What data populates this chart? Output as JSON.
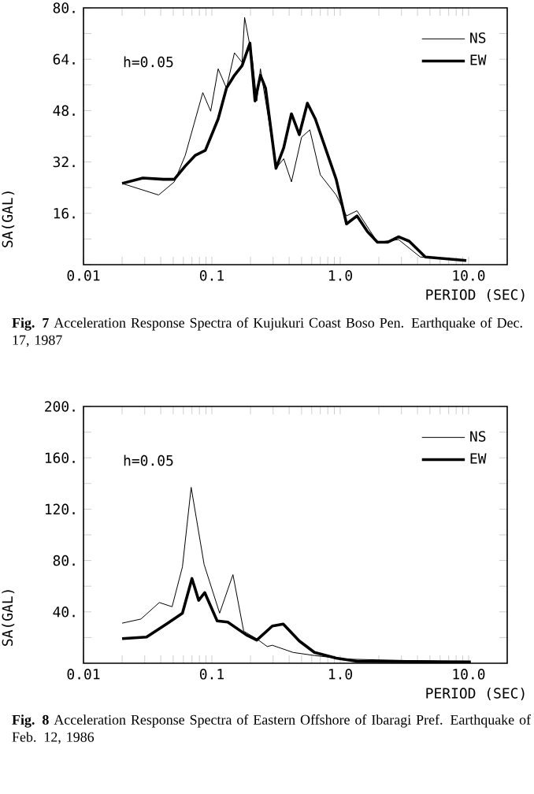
{
  "chart_data": [
    {
      "type": "line",
      "title": "**Fig. 7** Acceleration Response Spectra of Kujukuri Coast Boso Pen. Earthquake of Dec. 17, 1987",
      "xlabel": "PERIOD (SEC)",
      "ylabel": "SA(GAL)",
      "annotations": [
        "h=0.05"
      ],
      "log": "x",
      "legend": "top right",
      "xlim": [
        0.01,
        20
      ],
      "ylim": [
        0,
        80
      ],
      "xticks": [
        {
          "value": 0.01,
          "label": "0.01"
        },
        {
          "value": 0.02,
          "label": null
        },
        {
          "value": 0.03,
          "label": null
        },
        {
          "value": 0.04,
          "label": null
        },
        {
          "value": 0.05,
          "label": null
        },
        {
          "value": 0.06,
          "label": null
        },
        {
          "value": 0.07,
          "label": null
        },
        {
          "value": 0.08,
          "label": null
        },
        {
          "value": 0.09,
          "label": null
        },
        {
          "value": 0.1,
          "label": "0.1"
        },
        {
          "value": 0.2,
          "label": null
        },
        {
          "value": 0.3,
          "label": null
        },
        {
          "value": 0.4,
          "label": null
        },
        {
          "value": 0.5,
          "label": null
        },
        {
          "value": 0.6,
          "label": null
        },
        {
          "value": 0.7,
          "label": null
        },
        {
          "value": 0.8,
          "label": null
        },
        {
          "value": 0.9,
          "label": null
        },
        {
          "value": 1,
          "label": "1.0"
        },
        {
          "value": 2,
          "label": null
        },
        {
          "value": 3,
          "label": null
        },
        {
          "value": 4,
          "label": null
        },
        {
          "value": 5,
          "label": null
        },
        {
          "value": 6,
          "label": null
        },
        {
          "value": 7,
          "label": null
        },
        {
          "value": 8,
          "label": null
        },
        {
          "value": 9,
          "label": null
        },
        {
          "value": 10,
          "label": "10.0"
        }
      ],
      "yticks": [
        {
          "value": 0,
          "label": null
        },
        {
          "value": 8,
          "label": null
        },
        {
          "value": 16,
          "label": "16."
        },
        {
          "value": 24,
          "label": null
        },
        {
          "value": 32,
          "label": "32."
        },
        {
          "value": 40,
          "label": null
        },
        {
          "value": 48,
          "label": "48."
        },
        {
          "value": 56,
          "label": null
        },
        {
          "value": 64,
          "label": "64."
        },
        {
          "value": 72,
          "label": null
        },
        {
          "value": 80,
          "label": "80."
        }
      ],
      "series": [
        {
          "name": "NS",
          "color": "#000000",
          "x": [
            0.02,
            0.0385,
            0.051,
            0.062,
            0.085,
            0.098,
            0.112,
            0.13,
            0.15,
            0.172,
            0.18,
            0.207,
            0.224,
            0.239,
            0.275,
            0.316,
            0.363,
            0.417,
            0.5,
            0.58,
            0.7,
            0.93,
            1.12,
            1.35,
            1.95,
            2.85,
            4.2,
            9.6
          ],
          "values": [
            25.3,
            21.7,
            25.8,
            34,
            53.6,
            47.8,
            61,
            55,
            66,
            63,
            77,
            64,
            51,
            61,
            46,
            30,
            33,
            25.8,
            39.7,
            42,
            28,
            21.7,
            15.2,
            16.8,
            7,
            7.8,
            2.4,
            1.3
          ]
        },
        {
          "name": "EW",
          "color": "#000000",
          "x": [
            0.02,
            0.029,
            0.042,
            0.051,
            0.062,
            0.074,
            0.089,
            0.112,
            0.13,
            0.15,
            0.172,
            0.198,
            0.217,
            0.239,
            0.262,
            0.316,
            0.363,
            0.417,
            0.48,
            0.555,
            0.64,
            0.93,
            1.12,
            1.35,
            1.63,
            1.95,
            2.35,
            2.85,
            3.45,
            4.6,
            9.6
          ],
          "values": [
            25.3,
            27,
            26.6,
            26.6,
            30.7,
            34,
            35.6,
            45.4,
            55,
            59,
            62,
            69,
            51,
            59,
            55,
            30,
            36.4,
            47,
            40.5,
            50.3,
            45.4,
            26.6,
            12.7,
            15.2,
            10.3,
            7,
            7,
            8.7,
            7.3,
            2.4,
            1.3
          ]
        }
      ]
    },
    {
      "type": "line",
      "title": "**Fig. 8** Acceleration Response Spectra of Eastern Offshore of Ibaragi Pref. Earthquake of Feb. 12, 1986",
      "xlabel": "PERIOD (SEC)",
      "ylabel": "SA(GAL)",
      "annotations": [
        "h=0.05"
      ],
      "log": "x",
      "legend": "top right",
      "xlim": [
        0.01,
        20
      ],
      "ylim": [
        0,
        200
      ],
      "xticks": [
        {
          "value": 0.01,
          "label": "0.01"
        },
        {
          "value": 0.02,
          "label": null
        },
        {
          "value": 0.03,
          "label": null
        },
        {
          "value": 0.04,
          "label": null
        },
        {
          "value": 0.05,
          "label": null
        },
        {
          "value": 0.06,
          "label": null
        },
        {
          "value": 0.07,
          "label": null
        },
        {
          "value": 0.08,
          "label": null
        },
        {
          "value": 0.09,
          "label": null
        },
        {
          "value": 0.1,
          "label": "0.1"
        },
        {
          "value": 0.2,
          "label": null
        },
        {
          "value": 0.3,
          "label": null
        },
        {
          "value": 0.4,
          "label": null
        },
        {
          "value": 0.5,
          "label": null
        },
        {
          "value": 0.6,
          "label": null
        },
        {
          "value": 0.7,
          "label": null
        },
        {
          "value": 0.8,
          "label": null
        },
        {
          "value": 0.9,
          "label": null
        },
        {
          "value": 1,
          "label": "1.0"
        },
        {
          "value": 2,
          "label": null
        },
        {
          "value": 3,
          "label": null
        },
        {
          "value": 4,
          "label": null
        },
        {
          "value": 5,
          "label": null
        },
        {
          "value": 6,
          "label": null
        },
        {
          "value": 7,
          "label": null
        },
        {
          "value": 8,
          "label": null
        },
        {
          "value": 9,
          "label": null
        },
        {
          "value": 10,
          "label": "10.0"
        }
      ],
      "yticks": [
        {
          "value": 0,
          "label": null
        },
        {
          "value": 20,
          "label": null
        },
        {
          "value": 40,
          "label": "40."
        },
        {
          "value": 60,
          "label": null
        },
        {
          "value": 80,
          "label": "80."
        },
        {
          "value": 100,
          "label": null
        },
        {
          "value": 120,
          "label": "120."
        },
        {
          "value": 140,
          "label": null
        },
        {
          "value": 160,
          "label": "160."
        },
        {
          "value": 180,
          "label": null
        },
        {
          "value": 200,
          "label": "200."
        }
      ],
      "series": [
        {
          "name": "NS",
          "color": "#000000",
          "x": [
            0.02,
            0.028,
            0.039,
            0.049,
            0.059,
            0.069,
            0.087,
            0.115,
            0.146,
            0.177,
            0.224,
            0.27,
            0.296,
            0.43,
            0.63,
            1.12,
            10.4
          ],
          "values": [
            31.2,
            34.4,
            47.3,
            44,
            75,
            137,
            77,
            39,
            69,
            25,
            19,
            13,
            14,
            8.4,
            6,
            3.2,
            1
          ]
        },
        {
          "name": "EW",
          "color": "#000000",
          "x": [
            0.02,
            0.031,
            0.045,
            0.059,
            0.07,
            0.079,
            0.088,
            0.11,
            0.133,
            0.186,
            0.224,
            0.296,
            0.36,
            0.48,
            0.63,
            0.93,
            1.35,
            10.4
          ],
          "values": [
            19.2,
            20.4,
            31,
            39,
            66,
            49,
            55,
            33,
            32,
            22,
            18,
            29,
            30.5,
            17.3,
            8.4,
            4,
            1.5,
            1
          ]
        }
      ]
    }
  ]
}
